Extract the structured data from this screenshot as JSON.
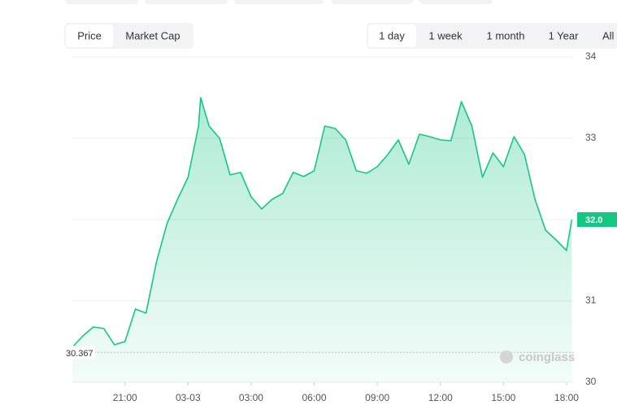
{
  "tabs": [
    "Price",
    "Market Cap"
  ],
  "ranges": [
    "1 day",
    "1 week",
    "1 month",
    "1 Year",
    "All"
  ],
  "chart_data": {
    "type": "area",
    "x": [
      18.5,
      19.0,
      19.5,
      20.0,
      20.5,
      21.0,
      21.5,
      22.0,
      22.5,
      23.0,
      23.5,
      24.0,
      24.5,
      24.6,
      25.0,
      25.5,
      26.0,
      26.5,
      27.0,
      27.5,
      28.0,
      28.5,
      29.0,
      29.5,
      30.0,
      30.5,
      31.0,
      31.5,
      32.0,
      32.5,
      33.0,
      33.5,
      34.0,
      34.5,
      35.0,
      35.5,
      36.0,
      36.5,
      37.0,
      37.5,
      38.0,
      38.5,
      39.0,
      39.5,
      40.0,
      40.5,
      41.0,
      41.5,
      42.0,
      42.25
    ],
    "series": [
      {
        "color": "#16c784",
        "values": [
          30.43,
          30.57,
          30.68,
          30.66,
          30.46,
          30.5,
          30.9,
          30.85,
          31.48,
          31.95,
          32.25,
          32.52,
          33.15,
          33.5,
          33.15,
          33.0,
          32.55,
          32.58,
          32.28,
          32.13,
          32.25,
          32.32,
          32.58,
          32.53,
          32.6,
          33.15,
          33.12,
          32.98,
          32.6,
          32.57,
          32.65,
          32.8,
          32.98,
          32.68,
          33.05,
          33.02,
          32.98,
          32.97,
          33.45,
          33.15,
          32.52,
          32.82,
          32.65,
          33.02,
          32.8,
          32.25,
          31.87,
          31.75,
          31.62,
          32.0
        ]
      }
    ],
    "xlim": [
      18.46,
      42.35
    ],
    "xticks": [
      {
        "value": 21,
        "label": "21:00"
      },
      {
        "value": 24,
        "label": "03-03"
      },
      {
        "value": 27,
        "label": "03:00"
      },
      {
        "value": 30,
        "label": "06:00"
      },
      {
        "value": 33,
        "label": "09:00"
      },
      {
        "value": 36,
        "label": "12:00"
      },
      {
        "value": 39,
        "label": "15:00"
      },
      {
        "value": 42,
        "label": "18:00"
      }
    ],
    "ylim": [
      30,
      34
    ],
    "yticks": [
      30,
      31,
      32,
      33,
      34
    ],
    "grid": true,
    "low_marker": 30.367,
    "current": {
      "value": 32.0,
      "label": "32.0"
    },
    "watermark": "coinglass"
  }
}
